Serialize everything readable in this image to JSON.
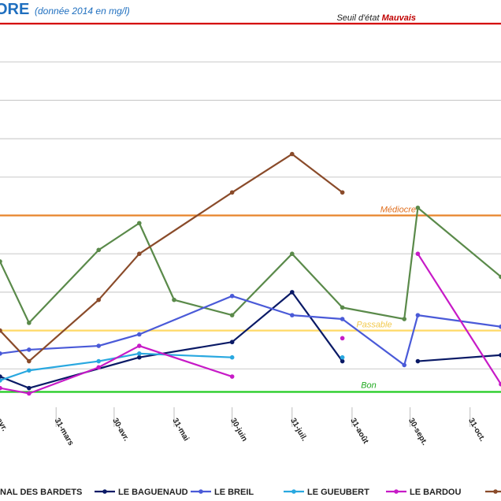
{
  "chart_data": {
    "type": "line",
    "title": "ORE",
    "subtitle": "(donnée 2014 en mg/l)",
    "thresholds": [
      {
        "name": "Mauvais",
        "prefix": "Seuil d'état ",
        "value": 50,
        "color": "#d40000",
        "text_color": "#c00000",
        "label_pos": "right-top"
      },
      {
        "name": "Médiocre",
        "prefix": "",
        "value": 25,
        "color": "#e8842a",
        "text_color": "#e07020",
        "label_pos": "right-top"
      },
      {
        "name": "Passable",
        "prefix": "",
        "value": 10,
        "color": "#ffd966",
        "text_color": "#f2c94c",
        "label_pos": "center-bottom"
      },
      {
        "name": "Bon",
        "prefix": "",
        "value": 2,
        "color": "#22cc22",
        "text_color": "#22aa22",
        "label_pos": "center-top"
      }
    ],
    "ylim": [
      0,
      50
    ],
    "grid": true,
    "x_ticks": [
      "avr.",
      "31-mars",
      "30-avr.",
      "31-mai",
      "30-juin",
      "31-juil.",
      "31-août",
      "30-sept.",
      "31-oct."
    ],
    "x_tick_days": [
      60,
      90,
      120,
      151,
      181,
      212,
      243,
      273,
      304
    ],
    "xlim": [
      61,
      320
    ],
    "legend_position": "bottom",
    "series": [
      {
        "name": "NAL DES BARDETS",
        "color": "#5a8a4a",
        "points": [
          [
            61,
            19
          ],
          [
            76,
            11
          ],
          [
            112,
            20.5
          ],
          [
            133,
            24
          ],
          [
            151,
            14
          ],
          [
            181,
            12
          ],
          [
            212,
            20
          ],
          [
            238,
            13
          ],
          [
            270,
            11.5
          ],
          [
            277,
            26
          ],
          [
            320,
            17
          ]
        ]
      },
      {
        "name": "LE BAGUENAUD",
        "color": "#0a1a66",
        "points": [
          [
            61,
            4
          ],
          [
            76,
            2.5
          ],
          [
            133,
            6.5
          ],
          [
            181,
            8.5
          ],
          [
            212,
            15
          ],
          [
            238,
            6
          ],
          null,
          [
            277,
            6
          ],
          [
            320,
            6.8
          ]
        ]
      },
      {
        "name": "LE BREIL",
        "color": "#4a5ad8",
        "points": [
          [
            61,
            7
          ],
          [
            76,
            7.5
          ],
          [
            112,
            8
          ],
          [
            133,
            9.5
          ],
          [
            181,
            14.5
          ],
          [
            212,
            12
          ],
          [
            238,
            11.5
          ],
          [
            270,
            5.5
          ],
          [
            277,
            12
          ],
          [
            320,
            10.5
          ]
        ]
      },
      {
        "name": "LE GUEUBERT",
        "color": "#29a8e0",
        "points": [
          [
            61,
            3.5
          ],
          [
            76,
            4.8
          ],
          [
            112,
            6
          ],
          [
            133,
            7
          ],
          [
            181,
            6.5
          ],
          null,
          [
            238,
            6.5
          ]
        ]
      },
      {
        "name": "LE BARDOU",
        "color": "#c71ac7",
        "points": [
          [
            61,
            2.5
          ],
          [
            76,
            1.8
          ],
          [
            112,
            5.2
          ],
          [
            133,
            8
          ],
          [
            181,
            4
          ],
          null,
          [
            238,
            9
          ],
          null,
          [
            277,
            20
          ],
          [
            320,
            3
          ]
        ]
      },
      {
        "name": "",
        "color": "#8a4b2a",
        "points": [
          [
            61,
            10
          ],
          [
            76,
            6
          ],
          [
            112,
            14
          ],
          [
            133,
            20
          ],
          [
            181,
            28
          ],
          [
            212,
            33
          ],
          [
            238,
            28
          ]
        ]
      }
    ]
  }
}
